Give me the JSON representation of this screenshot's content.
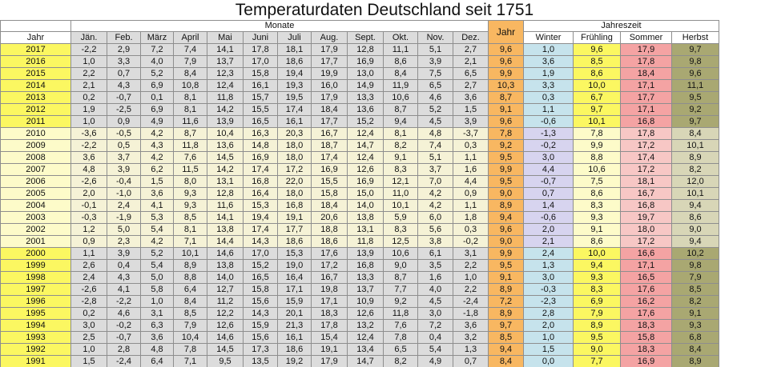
{
  "title": "Temperaturdaten Deutschland seit 1751",
  "headers": {
    "monate": "Monate",
    "jahreszeit": "Jahreszeit",
    "jahr_col": "Jahr",
    "row_label": "Jahr",
    "months": [
      "Jän.",
      "Feb.",
      "März",
      "April",
      "Mai",
      "Juni",
      "Juli",
      "Aug.",
      "Sept.",
      "Okt.",
      "Nov.",
      "Dez."
    ],
    "seasons": [
      "Winter",
      "Frühling",
      "Sommer",
      "Herbst"
    ]
  },
  "colors": {
    "year_highlight": "#fbf761",
    "year_normal": "#fdfbc9",
    "jahr_column": "#f8b761",
    "winter": "#c6e3ec",
    "fruehling": "#fbf761",
    "sommer": "#f4a3a3",
    "herbst": "#a9a872"
  },
  "rows": [
    {
      "year": "2017",
      "m": [
        "-2,2",
        "2,9",
        "7,2",
        "7,4",
        "14,1",
        "17,8",
        "18,1",
        "17,9",
        "12,8",
        "11,1",
        "5,1",
        "2,7"
      ],
      "jahr": "9,6",
      "s": [
        "1,0",
        "9,6",
        "17,9",
        "9,7"
      ]
    },
    {
      "year": "2016",
      "m": [
        "1,0",
        "3,3",
        "4,0",
        "7,9",
        "13,7",
        "17,0",
        "18,6",
        "17,7",
        "16,9",
        "8,6",
        "3,9",
        "2,1"
      ],
      "jahr": "9,6",
      "s": [
        "3,6",
        "8,5",
        "17,8",
        "9,8"
      ]
    },
    {
      "year": "2015",
      "m": [
        "2,2",
        "0,7",
        "5,2",
        "8,4",
        "12,3",
        "15,8",
        "19,4",
        "19,9",
        "13,0",
        "8,4",
        "7,5",
        "6,5"
      ],
      "jahr": "9,9",
      "s": [
        "1,9",
        "8,6",
        "18,4",
        "9,6"
      ]
    },
    {
      "year": "2014",
      "m": [
        "2,1",
        "4,3",
        "6,9",
        "10,8",
        "12,4",
        "16,1",
        "19,3",
        "16,0",
        "14,9",
        "11,9",
        "6,5",
        "2,7"
      ],
      "jahr": "10,3",
      "s": [
        "3,3",
        "10,0",
        "17,1",
        "11,1"
      ]
    },
    {
      "year": "2013",
      "m": [
        "0,2",
        "-0,7",
        "0,1",
        "8,1",
        "11,8",
        "15,7",
        "19,5",
        "17,9",
        "13,3",
        "10,6",
        "4,6",
        "3,6"
      ],
      "jahr": "8,7",
      "s": [
        "0,3",
        "6,7",
        "17,7",
        "9,5"
      ]
    },
    {
      "year": "2012",
      "m": [
        "1,9",
        "-2,5",
        "6,9",
        "8,1",
        "14,2",
        "15,5",
        "17,4",
        "18,4",
        "13,6",
        "8,7",
        "5,2",
        "1,5"
      ],
      "jahr": "9,1",
      "s": [
        "1,1",
        "9,7",
        "17,1",
        "9,2"
      ]
    },
    {
      "year": "2011",
      "m": [
        "1,0",
        "0,9",
        "4,9",
        "11,6",
        "13,9",
        "16,5",
        "16,1",
        "17,7",
        "15,2",
        "9,4",
        "4,5",
        "3,9"
      ],
      "jahr": "9,6",
      "s": [
        "-0,6",
        "10,1",
        "16,8",
        "9,7"
      ]
    },
    {
      "year": "2010",
      "m": [
        "-3,6",
        "-0,5",
        "4,2",
        "8,7",
        "10,4",
        "16,3",
        "20,3",
        "16,7",
        "12,4",
        "8,1",
        "4,8",
        "-3,7"
      ],
      "jahr": "7,8",
      "s": [
        "-1,3",
        "7,8",
        "17,8",
        "8,4"
      ]
    },
    {
      "year": "2009",
      "m": [
        "-2,2",
        "0,5",
        "4,3",
        "11,8",
        "13,6",
        "14,8",
        "18,0",
        "18,7",
        "14,7",
        "8,2",
        "7,4",
        "0,3"
      ],
      "jahr": "9,2",
      "s": [
        "-0,2",
        "9,9",
        "17,2",
        "10,1"
      ]
    },
    {
      "year": "2008",
      "m": [
        "3,6",
        "3,7",
        "4,2",
        "7,6",
        "14,5",
        "16,9",
        "18,0",
        "17,4",
        "12,4",
        "9,1",
        "5,1",
        "1,1"
      ],
      "jahr": "9,5",
      "s": [
        "3,0",
        "8,8",
        "17,4",
        "8,9"
      ]
    },
    {
      "year": "2007",
      "m": [
        "4,8",
        "3,9",
        "6,2",
        "11,5",
        "14,2",
        "17,4",
        "17,2",
        "16,9",
        "12,6",
        "8,3",
        "3,7",
        "1,6"
      ],
      "jahr": "9,9",
      "s": [
        "4,4",
        "10,6",
        "17,2",
        "8,2"
      ]
    },
    {
      "year": "2006",
      "m": [
        "-2,6",
        "-0,4",
        "1,5",
        "8,0",
        "13,1",
        "16,8",
        "22,0",
        "15,5",
        "16,9",
        "12,1",
        "7,0",
        "4,4"
      ],
      "jahr": "9,5",
      "s": [
        "-0,7",
        "7,5",
        "18,1",
        "12,0"
      ]
    },
    {
      "year": "2005",
      "m": [
        "2,0",
        "-1,0",
        "3,6",
        "9,3",
        "12,8",
        "16,4",
        "18,0",
        "15,8",
        "15,0",
        "11,0",
        "4,2",
        "0,9"
      ],
      "jahr": "9,0",
      "s": [
        "0,7",
        "8,6",
        "16,7",
        "10,1"
      ]
    },
    {
      "year": "2004",
      "m": [
        "-0,1",
        "2,4",
        "4,1",
        "9,3",
        "11,6",
        "15,3",
        "16,8",
        "18,4",
        "14,0",
        "10,1",
        "4,2",
        "1,1"
      ],
      "jahr": "8,9",
      "s": [
        "1,4",
        "8,3",
        "16,8",
        "9,4"
      ]
    },
    {
      "year": "2003",
      "m": [
        "-0,3",
        "-1,9",
        "5,3",
        "8,5",
        "14,1",
        "19,4",
        "19,1",
        "20,6",
        "13,8",
        "5,9",
        "6,0",
        "1,8"
      ],
      "jahr": "9,4",
      "s": [
        "-0,6",
        "9,3",
        "19,7",
        "8,6"
      ]
    },
    {
      "year": "2002",
      "m": [
        "1,2",
        "5,0",
        "5,4",
        "8,1",
        "13,8",
        "17,4",
        "17,7",
        "18,8",
        "13,1",
        "8,3",
        "5,6",
        "0,3"
      ],
      "jahr": "9,6",
      "s": [
        "2,0",
        "9,1",
        "18,0",
        "9,0"
      ]
    },
    {
      "year": "2001",
      "m": [
        "0,9",
        "2,3",
        "4,2",
        "7,1",
        "14,4",
        "14,3",
        "18,6",
        "18,6",
        "11,8",
        "12,5",
        "3,8",
        "-0,2"
      ],
      "jahr": "9,0",
      "s": [
        "2,1",
        "8,6",
        "17,2",
        "9,4"
      ]
    },
    {
      "year": "2000",
      "m": [
        "1,1",
        "3,9",
        "5,2",
        "10,1",
        "14,6",
        "17,0",
        "15,3",
        "17,6",
        "13,9",
        "10,6",
        "6,1",
        "3,1"
      ],
      "jahr": "9,9",
      "s": [
        "2,4",
        "10,0",
        "16,6",
        "10,2"
      ]
    },
    {
      "year": "1999",
      "m": [
        "2,6",
        "0,4",
        "5,4",
        "8,9",
        "13,8",
        "15,2",
        "19,0",
        "17,2",
        "16,8",
        "9,0",
        "3,5",
        "2,2"
      ],
      "jahr": "9,5",
      "s": [
        "1,3",
        "9,4",
        "17,1",
        "9,8"
      ]
    },
    {
      "year": "1998",
      "m": [
        "2,4",
        "4,3",
        "5,0",
        "8,8",
        "14,0",
        "16,5",
        "16,4",
        "16,7",
        "13,3",
        "8,7",
        "1,6",
        "1,0"
      ],
      "jahr": "9,1",
      "s": [
        "3,0",
        "9,3",
        "16,5",
        "7,9"
      ]
    },
    {
      "year": "1997",
      "m": [
        "-2,6",
        "4,1",
        "5,8",
        "6,4",
        "12,7",
        "15,8",
        "17,1",
        "19,8",
        "13,7",
        "7,7",
        "4,0",
        "2,2"
      ],
      "jahr": "8,9",
      "s": [
        "-0,3",
        "8,3",
        "17,6",
        "8,5"
      ]
    },
    {
      "year": "1996",
      "m": [
        "-2,8",
        "-2,2",
        "1,0",
        "8,4",
        "11,2",
        "15,6",
        "15,9",
        "17,1",
        "10,9",
        "9,2",
        "4,5",
        "-2,4"
      ],
      "jahr": "7,2",
      "s": [
        "-2,3",
        "6,9",
        "16,2",
        "8,2"
      ]
    },
    {
      "year": "1995",
      "m": [
        "0,2",
        "4,6",
        "3,1",
        "8,5",
        "12,2",
        "14,3",
        "20,1",
        "18,3",
        "12,6",
        "11,8",
        "3,0",
        "-1,8"
      ],
      "jahr": "8,9",
      "s": [
        "2,8",
        "7,9",
        "17,6",
        "9,1"
      ]
    },
    {
      "year": "1994",
      "m": [
        "3,0",
        "-0,2",
        "6,3",
        "7,9",
        "12,6",
        "15,9",
        "21,3",
        "17,8",
        "13,2",
        "7,6",
        "7,2",
        "3,6"
      ],
      "jahr": "9,7",
      "s": [
        "2,0",
        "8,9",
        "18,3",
        "9,3"
      ]
    },
    {
      "year": "1993",
      "m": [
        "2,5",
        "-0,7",
        "3,6",
        "10,4",
        "14,6",
        "15,6",
        "16,1",
        "15,4",
        "12,4",
        "7,8",
        "0,4",
        "3,2"
      ],
      "jahr": "8,5",
      "s": [
        "1,0",
        "9,5",
        "15,8",
        "6,8"
      ]
    },
    {
      "year": "1992",
      "m": [
        "1,0",
        "2,8",
        "4,8",
        "7,8",
        "14,5",
        "17,3",
        "18,6",
        "19,1",
        "13,4",
        "6,5",
        "5,4",
        "1,3"
      ],
      "jahr": "9,4",
      "s": [
        "1,5",
        "9,0",
        "18,3",
        "8,4"
      ]
    },
    {
      "year": "1991",
      "m": [
        "1,5",
        "-2,4",
        "6,4",
        "7,1",
        "9,5",
        "13,5",
        "19,2",
        "17,9",
        "14,7",
        "8,2",
        "4,9",
        "0,7"
      ],
      "jahr": "8,4",
      "s": [
        "0,0",
        "7,7",
        "16,9",
        "8,9"
      ]
    }
  ]
}
